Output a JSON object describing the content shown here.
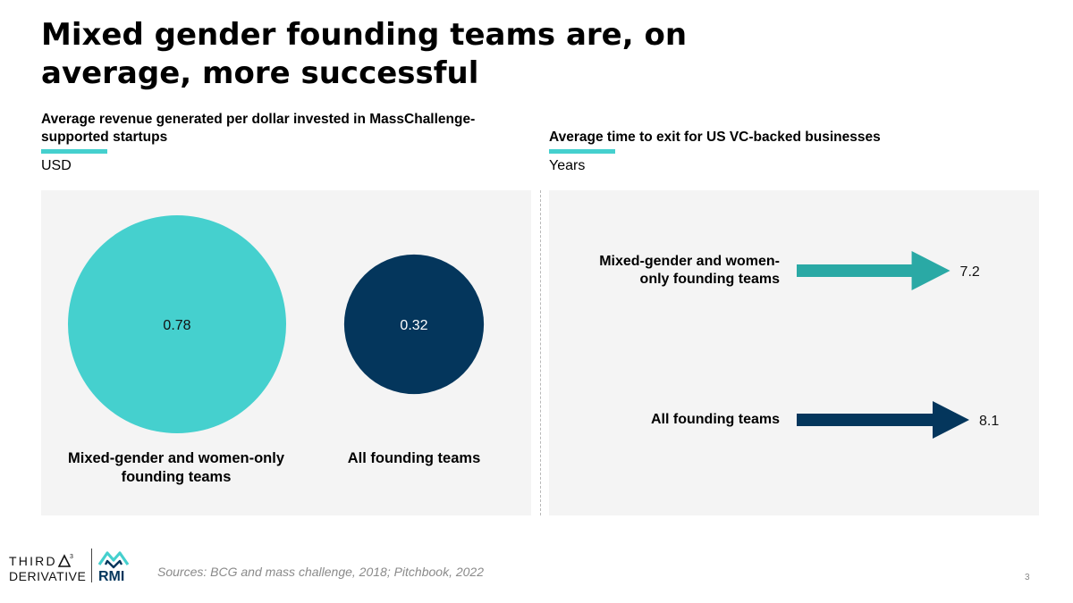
{
  "title": "Mixed gender founding teams are, on average, more successful",
  "chart_data": [
    {
      "type": "bubble",
      "title": "Average revenue generated per dollar invested in MassChallenge-supported startups",
      "unit": "USD",
      "categories": [
        "Mixed-gender and women-only founding teams",
        "All founding teams"
      ],
      "values": [
        0.78,
        0.32
      ],
      "value_labels": [
        "0.78",
        "0.32"
      ],
      "colors": [
        "#45d0ce",
        "#04365c"
      ]
    },
    {
      "type": "bar",
      "orientation": "horizontal",
      "mark": "arrow",
      "title": "Average time to exit for US VC-backed businesses",
      "unit": "Years",
      "categories": [
        "Mixed-gender and women-only founding teams",
        "All founding teams"
      ],
      "values": [
        7.2,
        8.1
      ],
      "value_labels": [
        "7.2",
        "8.1"
      ],
      "colors": [
        "#2aa9a5",
        "#04365c"
      ]
    }
  ],
  "logo": {
    "third_derivative": "THIRD DERIVATIVE",
    "rmi": "RMI"
  },
  "source": "Sources: BCG and mass challenge, 2018; Pitchbook, 2022",
  "page_number": "3",
  "colors": {
    "accent": "#45d0ce",
    "panel": "#f4f4f4",
    "navy": "#04365c",
    "teal": "#2aa9a5"
  }
}
